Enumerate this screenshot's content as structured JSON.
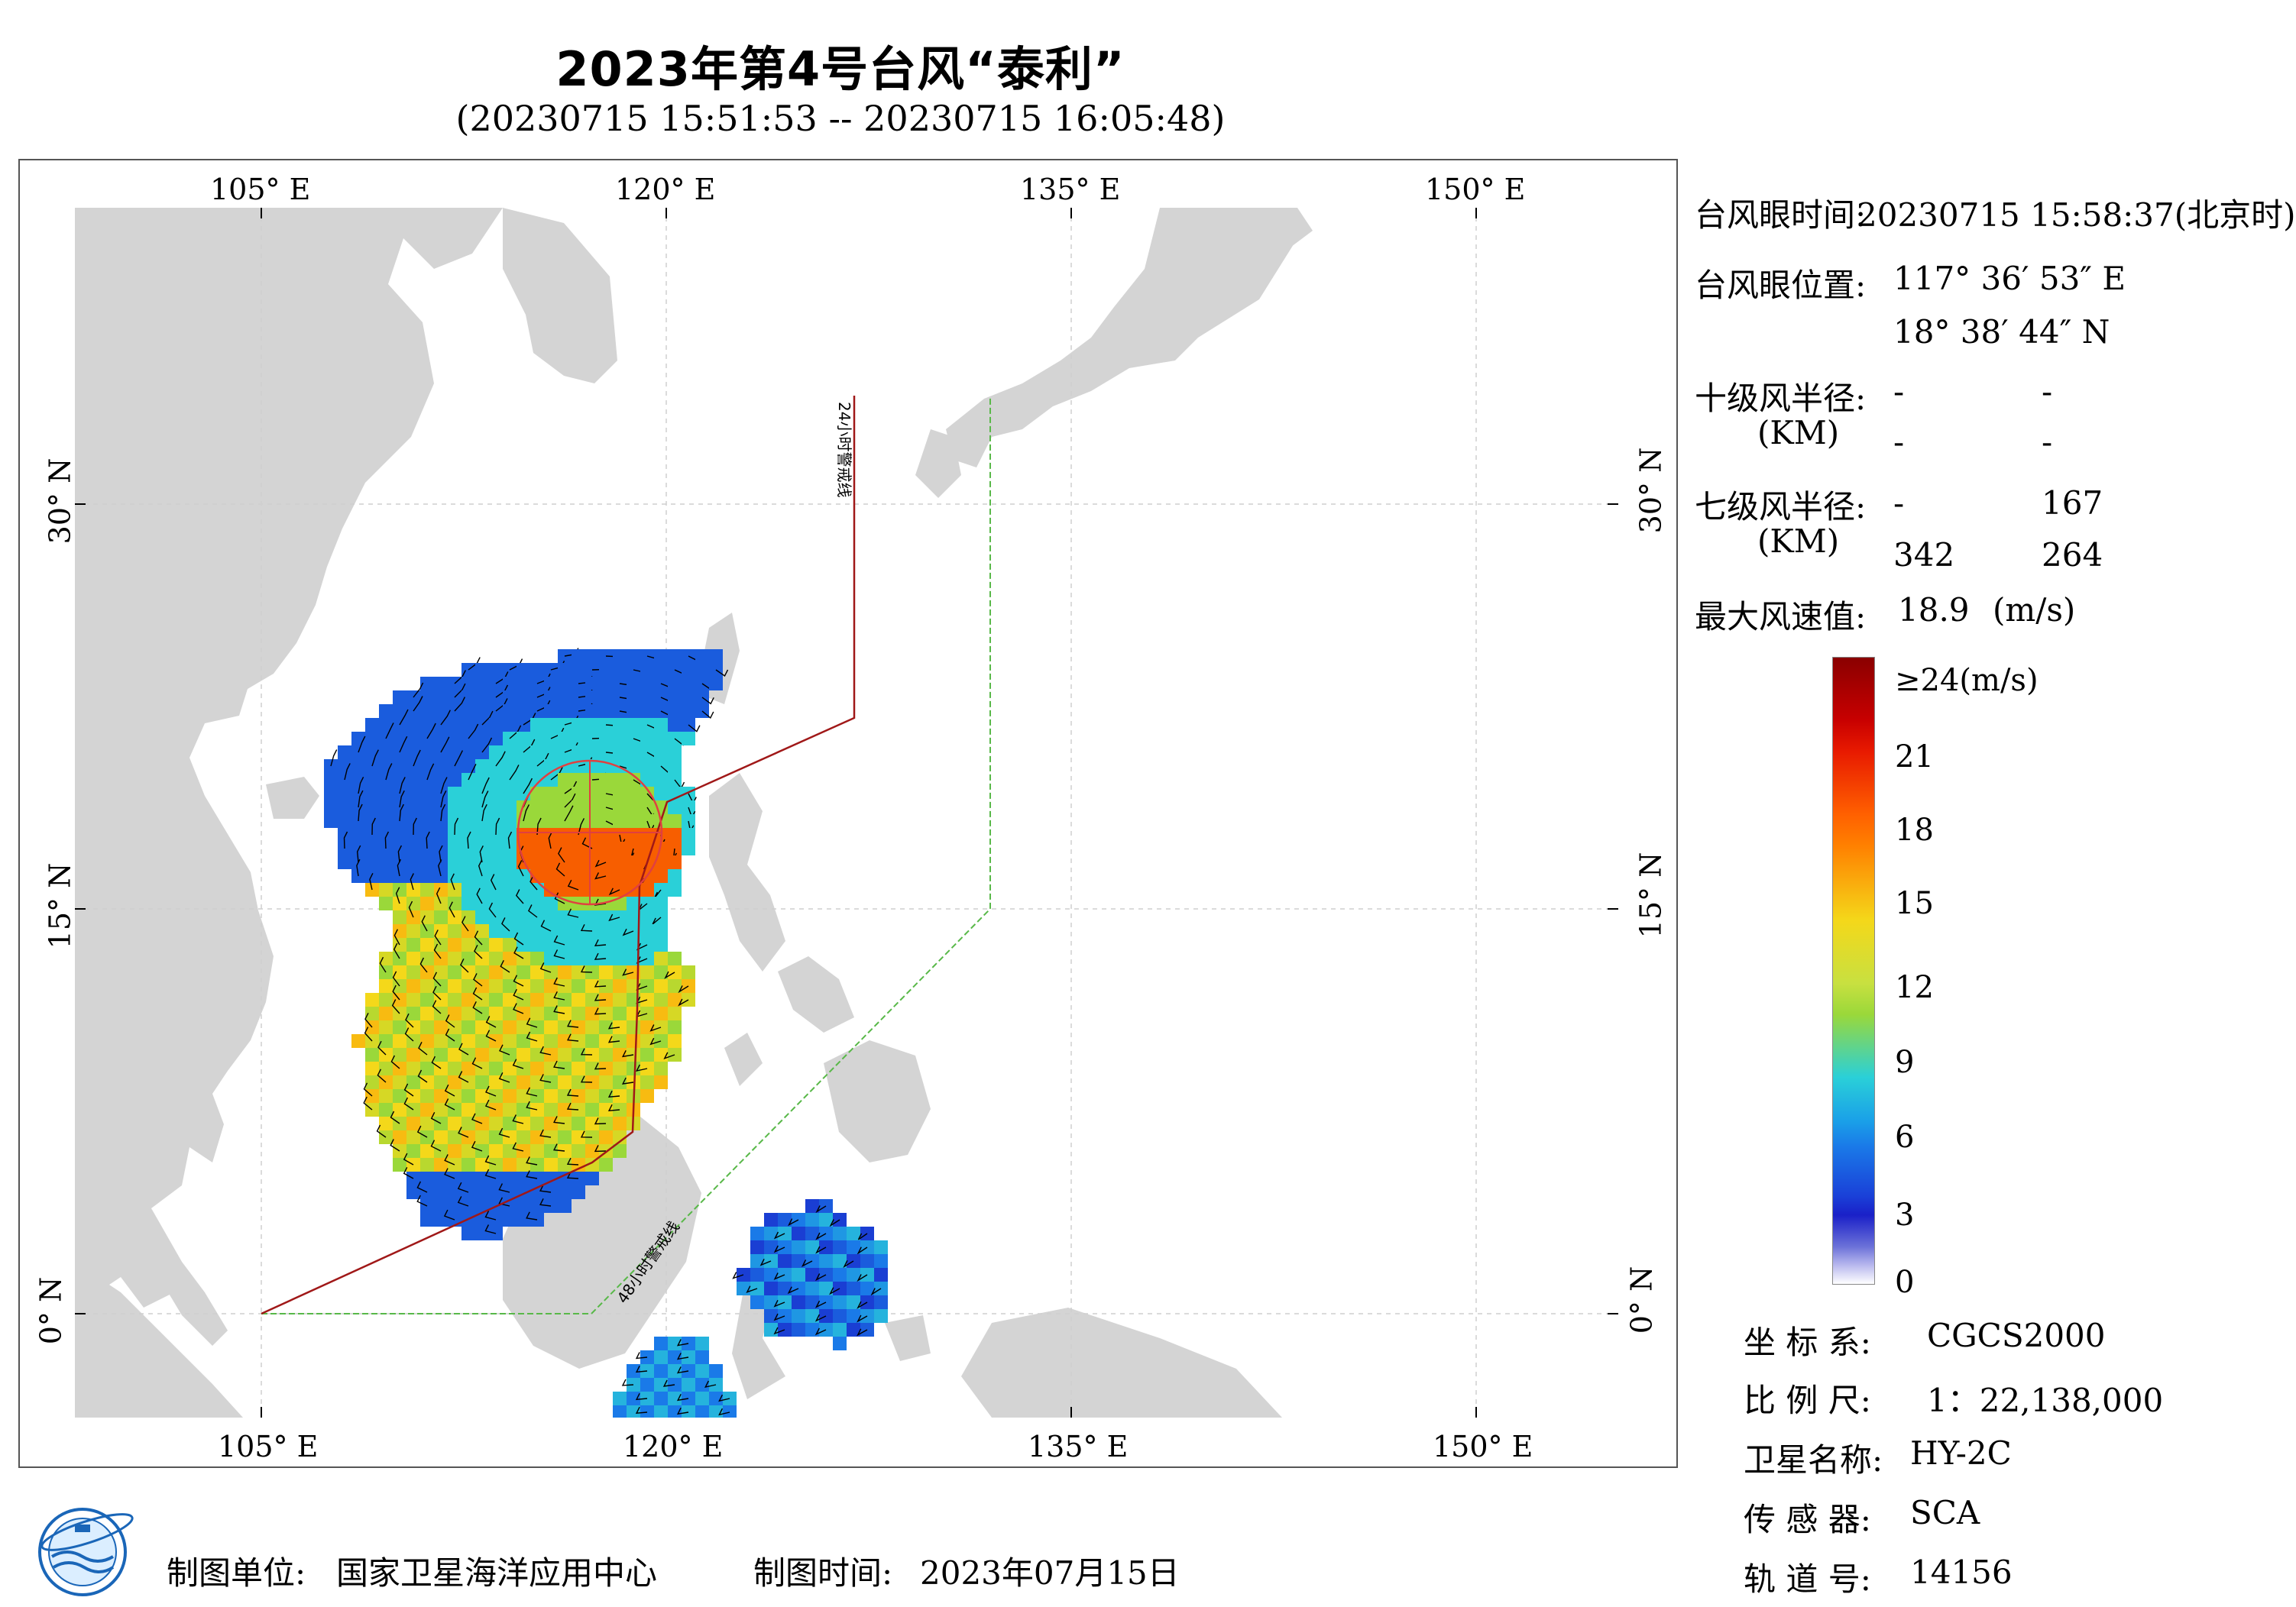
{
  "header": {
    "title": "2023年第4号台风“泰利”",
    "subtitle": "(20230715 15:51:53 -- 20230715 16:05:48)"
  },
  "map": {
    "lon_ticks": [
      "105° E",
      "120° E",
      "135° E",
      "150° E"
    ],
    "lat_ticks": [
      "30° N",
      "15° N",
      "0° N"
    ],
    "line_24h": "24小时警戒线",
    "line_48h": "48小时警戒线",
    "colors": {
      "land": "#d4d4d4",
      "ocean": "#ffffff",
      "warning_24h": "#a01818",
      "warning_48h": "#58b848",
      "eye_marker": "#e04040"
    }
  },
  "info": {
    "eye_time_label": "台风眼时间:",
    "eye_time_value": "20230715 15:58:37(北京时)",
    "eye_pos_label": "台风眼位置:",
    "eye_lon": "117° 36′ 53″ E",
    "eye_lat": "18° 38′ 44″ N",
    "r10_label": "十级风半径:",
    "r10_unit": "(KM)",
    "r10_values": [
      "-",
      "-",
      "-",
      "-"
    ],
    "r7_label": "七级风半径:",
    "r7_unit": "(KM)",
    "r7_values": [
      "-",
      "167",
      "342",
      "264"
    ],
    "maxwind_label": "最大风速值:",
    "maxwind_value": "18.9",
    "maxwind_unit": "(m/s)"
  },
  "legend": {
    "labels": [
      "≥24(m/s)",
      "21",
      "18",
      "15",
      "12",
      "9",
      "6",
      "3",
      "0"
    ],
    "colors": [
      "#8a0000",
      "#e81a00",
      "#ff8000",
      "#f4d81a",
      "#9ad83a",
      "#2ad0d8",
      "#1a7ae8",
      "#1a20c8",
      "#ffffff"
    ]
  },
  "meta": {
    "crs_label": "坐 标 系:",
    "crs_value": "CGCS2000",
    "scale_label": "比 例 尺:",
    "scale_value": "1：22,138,000",
    "satellite_label": "卫星名称:",
    "satellite_value": "HY-2C",
    "sensor_label": "传 感 器:",
    "sensor_value": "SCA",
    "orbit_label": "轨 道 号:",
    "orbit_value": "14156"
  },
  "footer": {
    "maker_label": "制图单位:",
    "maker_value": "国家卫星海洋应用中心",
    "date_label": "制图时间:",
    "date_value": "2023年07月15日"
  }
}
